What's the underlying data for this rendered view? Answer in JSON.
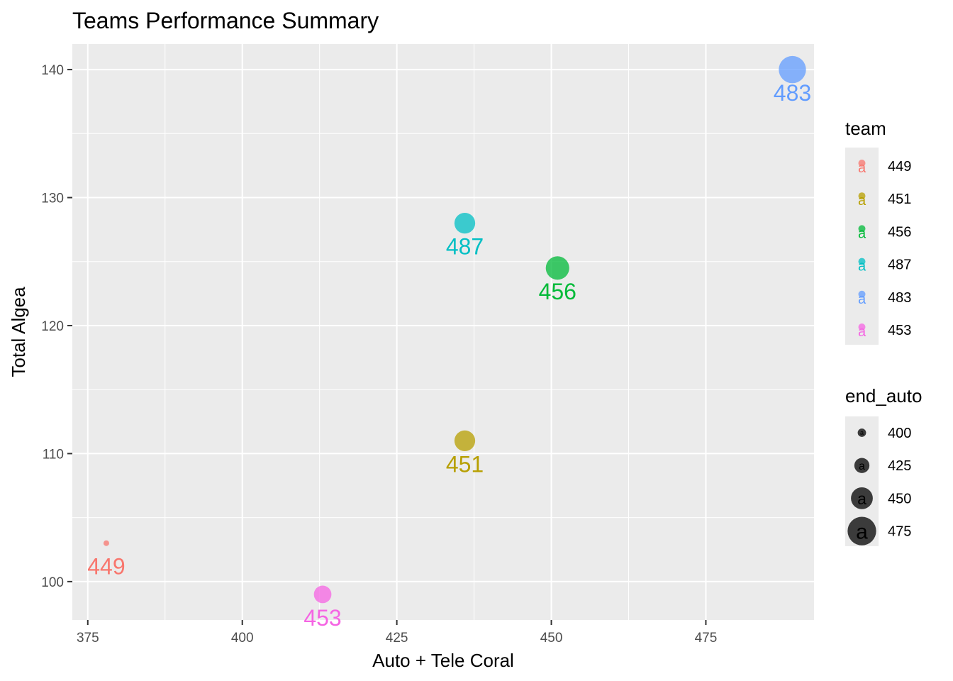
{
  "chart_data": {
    "type": "scatter",
    "title": "Teams Performance Summary",
    "xlabel": "Auto + Tele Coral",
    "ylabel": "Total Algea",
    "xlim": [
      372.5,
      492.5
    ],
    "ylim": [
      97,
      142
    ],
    "x_ticks": [
      "375",
      "400",
      "425",
      "450",
      "475"
    ],
    "x_tick_values": [
      375,
      400,
      425,
      450,
      475
    ],
    "y_ticks": [
      "100",
      "110",
      "120",
      "130",
      "140"
    ],
    "y_tick_values": [
      100,
      110,
      120,
      130,
      140
    ],
    "grid": true,
    "points": [
      {
        "team": "449",
        "x": 378,
        "y": 103,
        "end_auto": 390,
        "color": "#F8766D"
      },
      {
        "team": "451",
        "x": 436,
        "y": 111,
        "end_auto": 446,
        "color": "#B79F00"
      },
      {
        "team": "456",
        "x": 451,
        "y": 124.5,
        "end_auto": 456,
        "color": "#00BA38"
      },
      {
        "team": "487",
        "x": 436,
        "y": 128,
        "end_auto": 446,
        "color": "#00BFC4"
      },
      {
        "team": "483",
        "x": 489,
        "y": 140,
        "end_auto": 470,
        "color": "#619CFF"
      },
      {
        "team": "453",
        "x": 413,
        "y": 99,
        "end_auto": 434,
        "color": "#F564E3"
      }
    ],
    "legend_team": {
      "title": "team",
      "placement": "right",
      "entries": [
        {
          "label": "449",
          "color": "#F8766D"
        },
        {
          "label": "451",
          "color": "#B79F00"
        },
        {
          "label": "456",
          "color": "#00BA38"
        },
        {
          "label": "487",
          "color": "#00BFC4"
        },
        {
          "label": "483",
          "color": "#619CFF"
        },
        {
          "label": "453",
          "color": "#F564E3"
        }
      ]
    },
    "legend_size": {
      "title": "end_auto",
      "placement": "right",
      "entries": [
        {
          "label": "400",
          "value": 400
        },
        {
          "label": "425",
          "value": 425
        },
        {
          "label": "450",
          "value": 450
        },
        {
          "label": "475",
          "value": 475
        }
      ]
    },
    "key_glyph": "a"
  }
}
